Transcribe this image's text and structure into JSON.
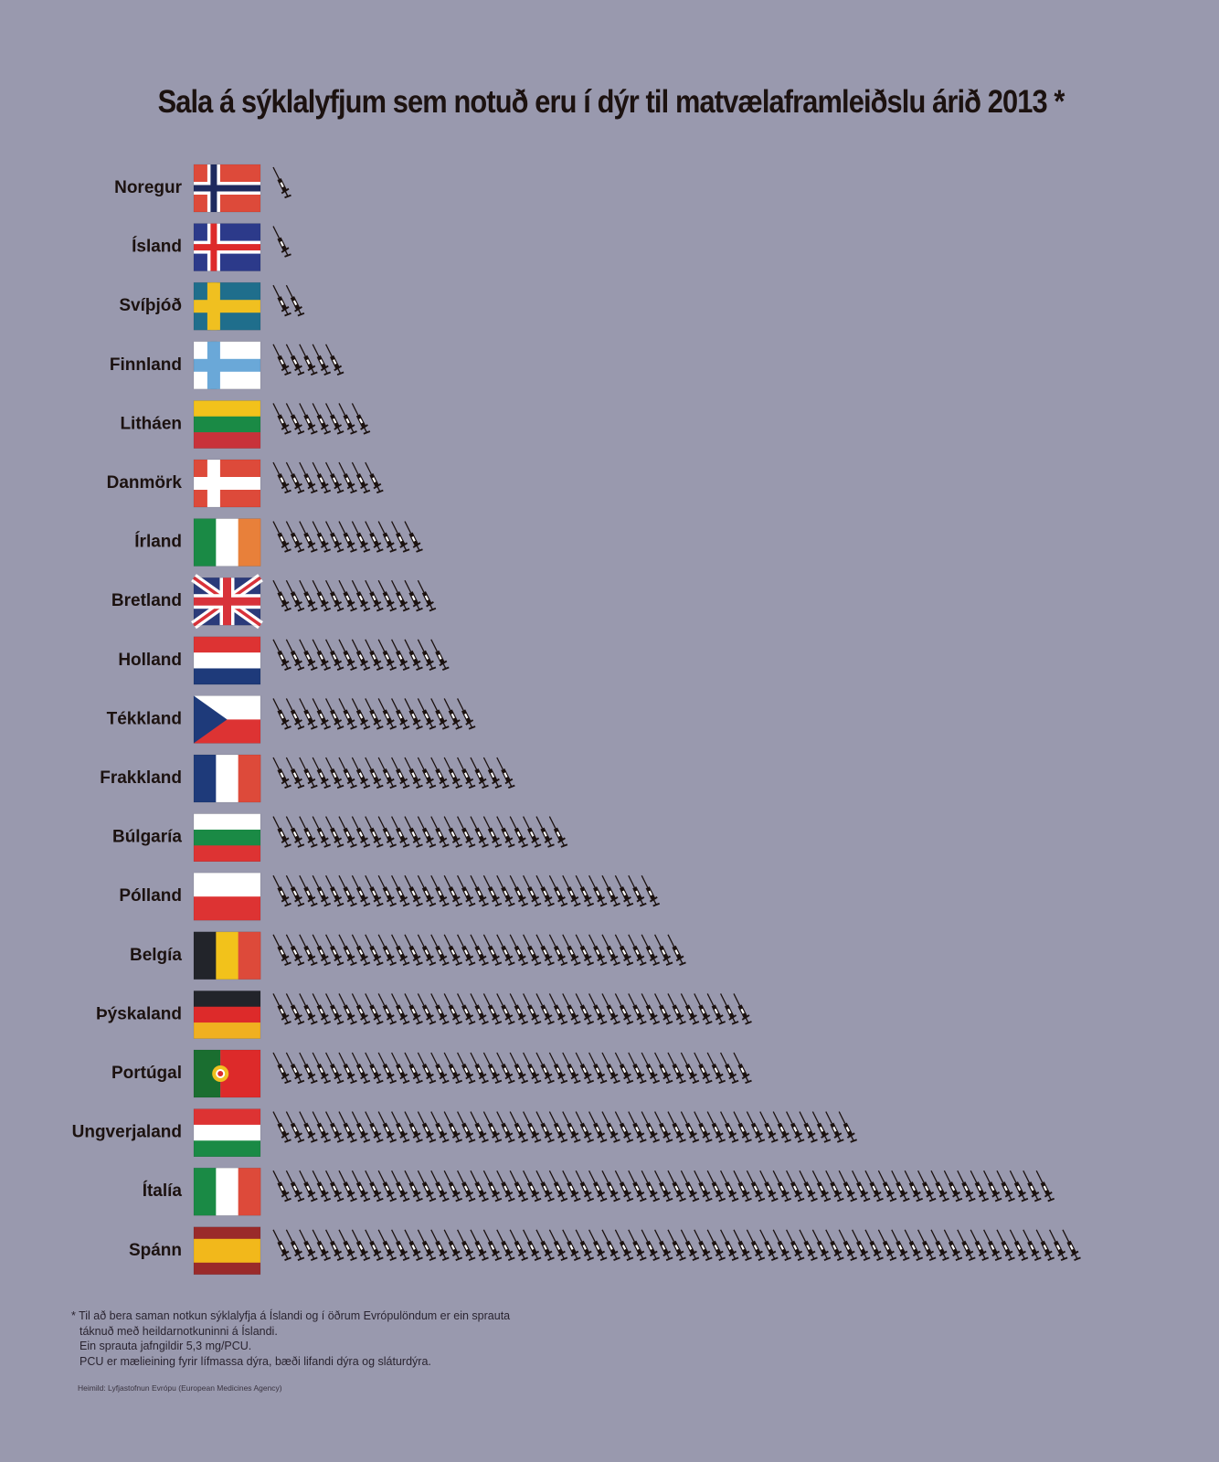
{
  "title": "Sala á sýklalyfjum sem notuð eru í dýr til matvælaframleiðslu árið 2013 *",
  "footnote": [
    "* Til að bera saman notkun sýklalyfja á Íslandi og í öðrum Evrópulöndum er ein sprauta",
    "táknuð með heildarnotkuninni á Íslandi.",
    "Ein sprauta jafngildir 5,3 mg/PCU.",
    "PCU er mælieining fyrir lífmassa dýra, bæði lifandi dýra og sláturdýra."
  ],
  "source": "Heimild: Lyfjastofnun Evrópu (European Medicines Agency)",
  "colors": {
    "background": "#9999ae",
    "text": "#1c1210",
    "syringe": "#1c1210",
    "syringe_highlight": "#ffffff"
  },
  "chart_data": {
    "type": "bar",
    "style": "pictogram",
    "unit_icon": "syringe-icon",
    "unit_value": "5,3 mg/PCU",
    "categories": [
      "Noregur",
      "Ísland",
      "Svíþjóð",
      "Finnland",
      "Litháen",
      "Danmörk",
      "Írland",
      "Bretland",
      "Holland",
      "Tékkland",
      "Frakkland",
      "Búlgaría",
      "Pólland",
      "Belgía",
      "Þýskaland",
      "Portúgal",
      "Ungverjaland",
      "Ítalía",
      "Spánn"
    ],
    "values": [
      1,
      1,
      2,
      5,
      7,
      8,
      11,
      12,
      13,
      15,
      18,
      22,
      29,
      31,
      36,
      36,
      44,
      59,
      61
    ],
    "flags": [
      {
        "type": "nordic",
        "colors": [
          "#dd4a3a",
          "#ffffff",
          "#1e2a5e"
        ]
      },
      {
        "type": "nordic",
        "colors": [
          "#2c3a8a",
          "#ffffff",
          "#dd2a2a"
        ]
      },
      {
        "type": "nordic",
        "colors": [
          "#1f6e8c",
          "#f0c020",
          "#f0c020"
        ]
      },
      {
        "type": "nordic",
        "colors": [
          "#ffffff",
          "#6aa8d8",
          "#6aa8d8"
        ]
      },
      {
        "type": "hstripes",
        "colors": [
          "#f2c21b",
          "#1a8a45",
          "#c8323a"
        ]
      },
      {
        "type": "nordic",
        "colors": [
          "#dd4a3a",
          "#ffffff",
          "#ffffff"
        ]
      },
      {
        "type": "vstripes",
        "colors": [
          "#1a8a45",
          "#ffffff",
          "#e8803a"
        ]
      },
      {
        "type": "unionjack",
        "colors": [
          "#2a3a7a",
          "#ffffff",
          "#d8323a"
        ]
      },
      {
        "type": "hstripes",
        "colors": [
          "#dd3333",
          "#ffffff",
          "#1e3a7a"
        ]
      },
      {
        "type": "czech",
        "colors": [
          "#ffffff",
          "#dd3333",
          "#1e3a7a"
        ]
      },
      {
        "type": "vstripes",
        "colors": [
          "#1e3a7a",
          "#ffffff",
          "#dd4a3a"
        ]
      },
      {
        "type": "hstripes",
        "colors": [
          "#ffffff",
          "#1a8a45",
          "#dd3333"
        ]
      },
      {
        "type": "hstripes2",
        "colors": [
          "#ffffff",
          "#dd3333"
        ]
      },
      {
        "type": "vstripes",
        "colors": [
          "#22242a",
          "#f2c21b",
          "#dd4a3a"
        ]
      },
      {
        "type": "hstripes",
        "colors": [
          "#22242a",
          "#dd2a2a",
          "#f0b020"
        ]
      },
      {
        "type": "portugal",
        "colors": [
          "#1a6e30",
          "#dd2a2a",
          "#f0c020"
        ]
      },
      {
        "type": "hstripes",
        "colors": [
          "#dd3333",
          "#ffffff",
          "#1a8a45"
        ]
      },
      {
        "type": "vstripes",
        "colors": [
          "#1a8a45",
          "#ffffff",
          "#dd4a3a"
        ]
      },
      {
        "type": "spain",
        "colors": [
          "#9a2a2a",
          "#f2b81b"
        ]
      }
    ]
  }
}
